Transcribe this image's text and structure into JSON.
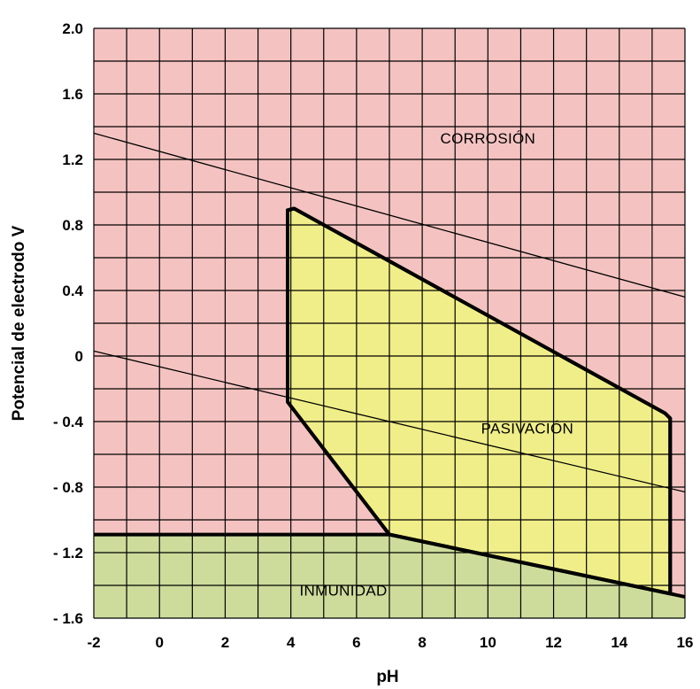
{
  "chart_data": {
    "type": "area",
    "title": "",
    "xlabel": "pH",
    "ylabel": "Potencial de electrodo V",
    "xlim": [
      -2,
      16
    ],
    "ylim": [
      -1.6,
      2.0
    ],
    "x_ticks": [
      {
        "value": -2,
        "label": "-2"
      },
      {
        "value": 0,
        "label": "0"
      },
      {
        "value": 2,
        "label": "2"
      },
      {
        "value": 4,
        "label": "4"
      },
      {
        "value": 6,
        "label": "6"
      },
      {
        "value": 8,
        "label": "8"
      },
      {
        "value": 10,
        "label": "10"
      },
      {
        "value": 12,
        "label": "12"
      },
      {
        "value": 14,
        "label": "14"
      },
      {
        "value": 16,
        "label": "16"
      }
    ],
    "y_ticks": [
      {
        "value": 2.0,
        "label": "2.0"
      },
      {
        "value": 1.6,
        "label": "1.6"
      },
      {
        "value": 1.2,
        "label": "1.2"
      },
      {
        "value": 0.8,
        "label": "0.8"
      },
      {
        "value": 0.4,
        "label": "0.4"
      },
      {
        "value": 0,
        "label": "0"
      },
      {
        "value": -0.4,
        "label": "- 0.4"
      },
      {
        "value": -0.8,
        "label": "- 0.8"
      },
      {
        "value": -1.2,
        "label": "- 1.2"
      },
      {
        "value": -1.6,
        "label": "- 1.6"
      }
    ],
    "grid": true,
    "regions": [
      {
        "name": "CORROSIÓN",
        "color": "#f4c3c1",
        "polygon": [
          [
            -2,
            2.0
          ],
          [
            16,
            2.0
          ],
          [
            16,
            -1.47
          ],
          [
            7.0,
            -1.09
          ],
          [
            -2,
            -1.09
          ]
        ],
        "label_at": [
          10.0,
          1.33
        ]
      },
      {
        "name": "INMUNIDAD",
        "color": "#cddc9b",
        "polygon": [
          [
            -2,
            -1.09
          ],
          [
            7.0,
            -1.09
          ],
          [
            16,
            -1.47
          ],
          [
            16,
            -1.6
          ],
          [
            -2,
            -1.6
          ]
        ],
        "label_at": [
          5.6,
          -1.43
        ]
      },
      {
        "name": "PASIVACIÓN",
        "color": "#f0ee88",
        "polygon": [
          [
            3.9,
            0.89
          ],
          [
            4.1,
            0.9
          ],
          [
            15.4,
            -0.35
          ],
          [
            15.55,
            -0.38
          ],
          [
            15.55,
            -1.45
          ],
          [
            7.0,
            -1.09
          ],
          [
            3.9,
            -0.28
          ]
        ],
        "label_at": [
          11.2,
          -0.44
        ]
      }
    ],
    "boundary_lines": [
      {
        "points": [
          [
            -2,
            -1.09
          ],
          [
            7.0,
            -1.09
          ],
          [
            16,
            -1.47
          ]
        ],
        "style": "thick"
      },
      {
        "points": [
          [
            -2,
            1.36
          ],
          [
            16,
            0.36
          ]
        ],
        "style": "thin"
      },
      {
        "points": [
          [
            -2,
            0.03
          ],
          [
            16,
            -0.83
          ]
        ],
        "style": "thin"
      }
    ],
    "colors": {
      "corrosion": "#f4c3c1",
      "inmunidad": "#cddc9b",
      "pasivacion": "#f0ee88",
      "grid": "#000000"
    }
  }
}
